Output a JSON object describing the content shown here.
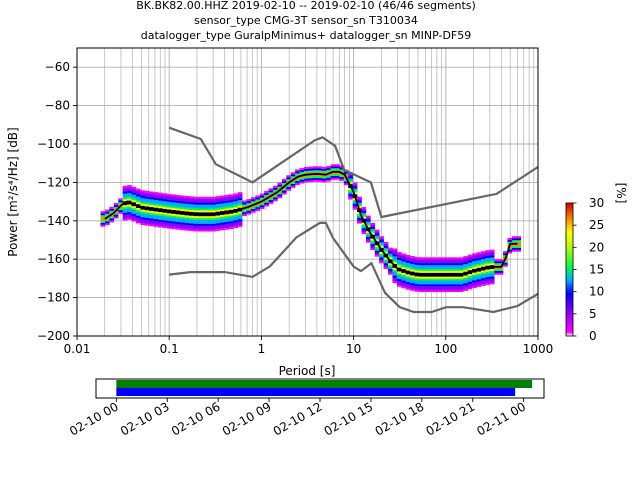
{
  "chart_data": [
    {
      "type": "heatmap",
      "title_lines": [
        "BK.BK82.00.HHZ   2019-02-10 -- 2019-02-10  (46/46 segments)",
        "sensor_type CMG-3T sensor_sn T310034",
        "datalogger_type GuralpMinimus+ datalogger_sn MINP-DF59"
      ],
      "xlabel": "Period [s]",
      "ylabel": "Power [m²/s⁴/Hz] [dB]",
      "xscale": "log",
      "xlim": [
        0.01,
        1000
      ],
      "ylim": [
        -200,
        -50
      ],
      "xticks": [
        {
          "v": 0.01,
          "label": "0.01"
        },
        {
          "v": 0.1,
          "label": "0.1"
        },
        {
          "v": 1,
          "label": "1"
        },
        {
          "v": 10,
          "label": "10"
        },
        {
          "v": 100,
          "label": "100"
        },
        {
          "v": 1000,
          "label": "1000"
        }
      ],
      "yticks": [
        {
          "v": -60,
          "label": "−60"
        },
        {
          "v": -80,
          "label": "−80"
        },
        {
          "v": -100,
          "label": "−100"
        },
        {
          "v": -120,
          "label": "−120"
        },
        {
          "v": -140,
          "label": "−140"
        },
        {
          "v": -160,
          "label": "−160"
        },
        {
          "v": -180,
          "label": "−180"
        },
        {
          "v": -200,
          "label": "−200"
        }
      ],
      "grid": true,
      "noise_model_high": {
        "x": [
          0.1,
          0.22,
          0.32,
          0.8,
          3.8,
          4.6,
          6.3,
          7.9,
          15.4,
          20,
          354.8,
          1000
        ],
        "y": [
          -91.5,
          -97.4,
          -110.5,
          -120,
          -98,
          -96.5,
          -101,
          -113.5,
          -120,
          -138,
          -126,
          -112
        ]
      },
      "noise_model_low": {
        "x": [
          0.1,
          0.17,
          0.4,
          0.8,
          1.24,
          2.4,
          4.3,
          5,
          6,
          10,
          12,
          15.6,
          21.9,
          31.6,
          45,
          70,
          101,
          154,
          328,
          600,
          1000
        ],
        "y": [
          -168,
          -166.7,
          -166.7,
          -169.2,
          -163.7,
          -148.6,
          -141.1,
          -141.1,
          -149,
          -163.8,
          -166.2,
          -162.1,
          -177.5,
          -185,
          -187.5,
          -187.5,
          -185,
          -185,
          -187.5,
          -184.4,
          -178
        ]
      },
      "mean_curve": {
        "x": [
          0.02,
          0.025,
          0.03,
          0.035,
          0.04,
          0.05,
          0.07,
          0.1,
          0.15,
          0.2,
          0.3,
          0.5,
          0.7,
          1,
          1.5,
          2,
          2.5,
          3,
          4,
          5,
          6,
          7,
          8,
          10,
          12,
          15,
          20,
          25,
          30,
          40,
          50,
          70,
          100,
          150,
          200,
          300,
          400,
          450,
          500,
          600
        ],
        "y": [
          -139,
          -136,
          -132,
          -130,
          -131,
          -133,
          -134,
          -135,
          -136,
          -136.5,
          -136.5,
          -135,
          -133,
          -130,
          -125,
          -120,
          -117,
          -116,
          -115.5,
          -116,
          -114.5,
          -114.5,
          -116,
          -125,
          -137,
          -146,
          -155,
          -161,
          -165,
          -167,
          -168,
          -168,
          -168,
          -168,
          -166,
          -164,
          -164,
          -159,
          -152,
          -152
        ]
      },
      "colorbar": {
        "label": "[%]",
        "range": [
          0,
          30
        ],
        "ticks": [
          0,
          5,
          10,
          15,
          20,
          25,
          30
        ]
      }
    },
    {
      "type": "timeline",
      "tick_labels": [
        "02-10 00",
        "02-10 03",
        "02-10 06",
        "02-10 09",
        "02-10 12",
        "02-10 15",
        "02-10 18",
        "02-10 21",
        "02-11 00"
      ],
      "tick_hours": [
        0,
        3,
        6,
        9,
        12,
        15,
        18,
        21,
        24
      ],
      "xlim_hours": [
        -1.2,
        25.2
      ],
      "bars": [
        {
          "start_hour": 0,
          "end_hour": 24.5,
          "color": "#008000"
        },
        {
          "start_hour": 0,
          "end_hour": 23.5,
          "color": "#0000ff"
        }
      ]
    }
  ]
}
